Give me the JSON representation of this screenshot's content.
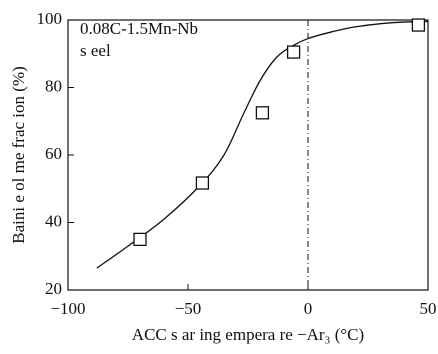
{
  "chart_data": {
    "type": "scatter",
    "annotations": [
      "0.08C-1.5Mn-Nb",
      "s eel"
    ],
    "xlabel": "ACC s ar ing empera re −Ar₃ (°C)",
    "ylabel": "Baini e ol me frac ion (%)",
    "xlim": [
      -100,
      50
    ],
    "ylim": [
      20,
      100
    ],
    "xticks": [
      {
        "value": -100,
        "label": "−100"
      },
      {
        "value": -50,
        "label": "−50"
      },
      0,
      50
    ],
    "yticks": [
      20,
      40,
      60,
      80,
      100
    ],
    "vline": 0,
    "series": [
      {
        "x": [
          -70,
          -44,
          -19,
          -6,
          46
        ],
        "values": [
          35,
          51.7,
          72.5,
          90.5,
          98.5
        ],
        "color": "#111"
      }
    ],
    "curve": {
      "x": [
        -88,
        -75,
        -60,
        -45,
        -35,
        -27,
        -20,
        -13,
        -6,
        0,
        10,
        20,
        35,
        50
      ],
      "values": [
        26.5,
        33,
        41,
        51,
        60,
        72,
        82,
        89,
        92.5,
        94.5,
        96.5,
        98,
        99.2,
        99.6
      ],
      "color": "#111"
    }
  }
}
